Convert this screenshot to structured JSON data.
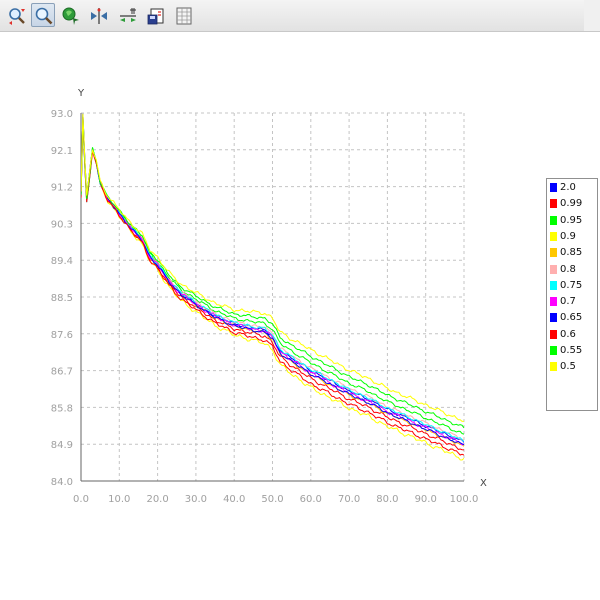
{
  "toolbar": {
    "buttons": [
      {
        "icon": "zoom-in-icon",
        "active": false
      },
      {
        "icon": "zoom-icon",
        "active": true
      },
      {
        "icon": "pan-icon",
        "active": false
      },
      {
        "icon": "fit-icon",
        "active": false
      },
      {
        "icon": "axis-settings-icon",
        "active": false
      },
      {
        "icon": "save-chart-icon",
        "active": false
      },
      {
        "icon": "data-table-icon",
        "active": false
      }
    ]
  },
  "chart_data": {
    "type": "line",
    "xlabel": "X",
    "ylabel": "Y",
    "xlim": [
      0,
      100
    ],
    "ylim": [
      84.0,
      93.0
    ],
    "x_ticks": [
      "0.0",
      "10.0",
      "20.0",
      "30.0",
      "40.0",
      "50.0",
      "60.0",
      "70.0",
      "80.0",
      "90.0",
      "100.0"
    ],
    "y_ticks": [
      "84.0",
      "84.9",
      "85.8",
      "86.7",
      "87.6",
      "88.5",
      "89.4",
      "90.3",
      "91.2",
      "92.1",
      "93.0"
    ],
    "grid": true,
    "legend_position": "right",
    "series": [
      {
        "name": "2.0",
        "color": "#0000ff",
        "offset": 0.0,
        "noise": 0.05
      },
      {
        "name": "0.99",
        "color": "#ff0000",
        "offset": -0.12,
        "noise": 0.06
      },
      {
        "name": "0.95",
        "color": "#00ff00",
        "offset": 0.12,
        "noise": 0.05
      },
      {
        "name": "0.9",
        "color": "#ffff00",
        "offset": -0.26,
        "noise": 0.07
      },
      {
        "name": "0.85",
        "color": "#ffc800",
        "offset": -0.06,
        "noise": 0.05
      },
      {
        "name": "0.8",
        "color": "#ffafaf",
        "offset": 0.04,
        "noise": 0.05
      },
      {
        "name": "0.75",
        "color": "#00ffff",
        "offset": 0.02,
        "noise": 0.05
      },
      {
        "name": "0.7",
        "color": "#ff00ff",
        "offset": -0.03,
        "noise": 0.06
      },
      {
        "name": "0.65",
        "color": "#0000ff",
        "offset": -0.05,
        "noise": 0.05
      },
      {
        "name": "0.6",
        "color": "#ff0000",
        "offset": -0.2,
        "noise": 0.06
      },
      {
        "name": "0.55",
        "color": "#00ff00",
        "offset": 0.22,
        "noise": 0.05
      },
      {
        "name": "0.5",
        "color": "#ffff00",
        "offset": 0.32,
        "noise": 0.06
      }
    ],
    "base_curve": {
      "x": [
        0,
        0.5,
        1,
        1.5,
        2,
        3,
        4,
        5,
        7,
        10,
        13,
        16,
        18,
        20,
        23,
        26,
        30,
        35,
        40,
        45,
        48,
        50,
        52,
        55,
        60,
        65,
        70,
        75,
        80,
        85,
        90,
        95,
        100
      ],
      "y": [
        91.0,
        92.9,
        91.8,
        90.9,
        91.3,
        92.1,
        91.8,
        91.3,
        90.9,
        90.55,
        90.2,
        89.9,
        89.5,
        89.3,
        88.9,
        88.6,
        88.35,
        88.05,
        87.85,
        87.75,
        87.7,
        87.55,
        87.2,
        87.0,
        86.7,
        86.45,
        86.2,
        86.0,
        85.75,
        85.55,
        85.35,
        85.15,
        84.95
      ]
    }
  }
}
